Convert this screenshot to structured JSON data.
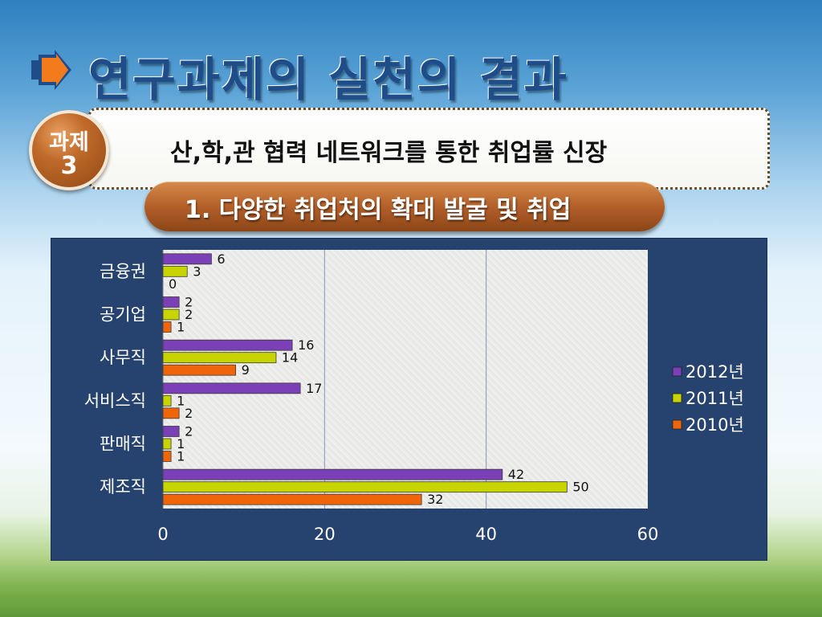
{
  "slide": {
    "title": "연구과제의 실천의 결과",
    "badge_line1": "과제",
    "badge_line2": "3",
    "banner_text": "산,학,관 협력 네트워크를 통한 취업률 신장",
    "pill_text": "1. 다양한 취업처의 확대 발굴 및 취업",
    "arrow_icon": "right-arrow-icon"
  },
  "colors": {
    "series_2012": "#7b3fb8",
    "series_2011": "#c8d400",
    "series_2010": "#f0640a",
    "chart_background": "#26426e"
  },
  "chart_data": {
    "type": "bar",
    "orientation": "horizontal",
    "categories": [
      "금융권",
      "공기업",
      "사무직",
      "서비스직",
      "판매직",
      "제조직"
    ],
    "series": [
      {
        "name": "2012년",
        "values": [
          6,
          2,
          16,
          17,
          2,
          42
        ]
      },
      {
        "name": "2011년",
        "values": [
          3,
          2,
          14,
          1,
          1,
          50
        ]
      },
      {
        "name": "2010년",
        "values": [
          0,
          1,
          9,
          2,
          1,
          32
        ]
      }
    ],
    "xlim": [
      0,
      60
    ],
    "x_ticks": [
      "0",
      "20",
      "40",
      "60"
    ],
    "grid": true,
    "legend": "right",
    "data_labels": true
  }
}
